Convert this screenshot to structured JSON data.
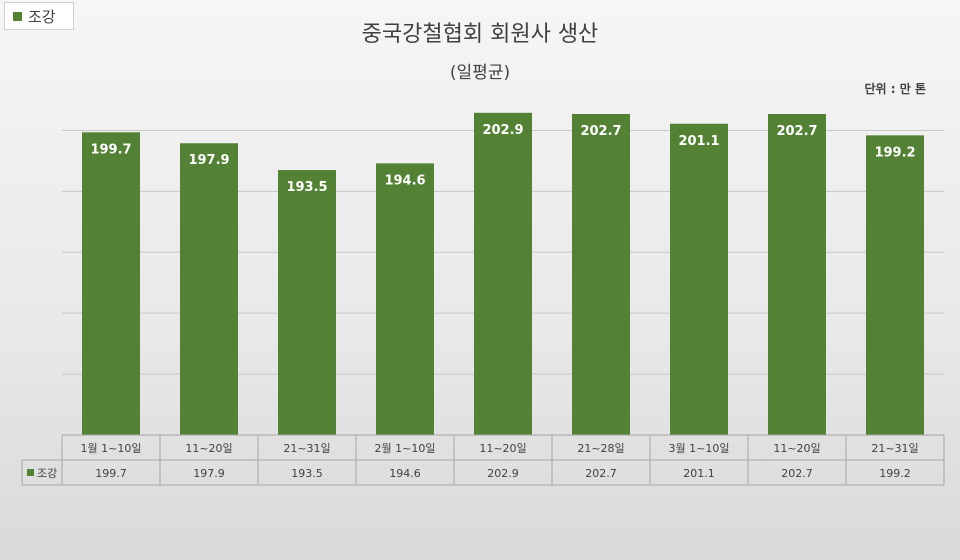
{
  "legend_label": "조강",
  "title": "중국강철협회 회원사 생산",
  "subtitle": "(일평균)",
  "unit_label": "단위 : 만 톤",
  "colors": {
    "bar": "#548235",
    "bar_label": "#ffffff",
    "grid": "#c8c8c8",
    "table_border": "#a6a6a6"
  },
  "chart_data": {
    "type": "bar",
    "title": "중국강철협회 회원사 생산",
    "subtitle": "(일평균)",
    "categories": [
      "1월 1~10일",
      "11~20일",
      "21~31일",
      "2월 1~10일",
      "11~20일",
      "21~28일",
      "3월 1~10일",
      "11~20일",
      "21~31일"
    ],
    "series": [
      {
        "name": "조강",
        "values": [
          199.7,
          197.9,
          193.5,
          194.6,
          202.9,
          202.7,
          201.1,
          202.7,
          199.2
        ]
      }
    ],
    "ylim": [
      150,
      205
    ],
    "grid": true,
    "legend": "top-left",
    "data_table": true
  }
}
